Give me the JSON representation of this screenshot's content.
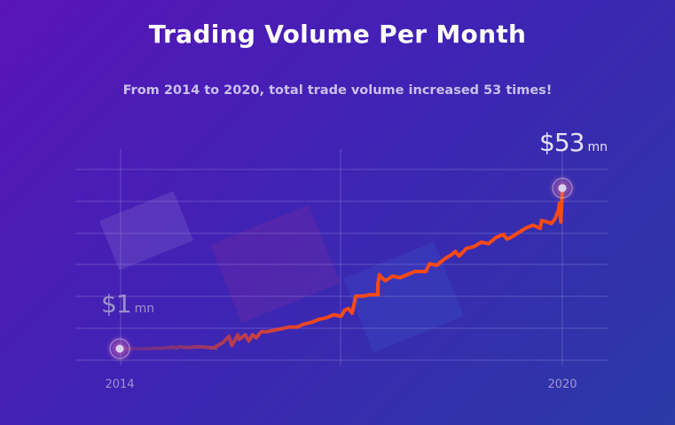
{
  "header": {
    "title": "Trading Volume Per Month",
    "subtitle": "From 2014 to 2020, total trade volume increased 53 times!"
  },
  "callouts": {
    "start": {
      "amount": "$1",
      "unit": "mn"
    },
    "end": {
      "amount": "$53",
      "unit": "mn"
    }
  },
  "colors": {
    "line": "#ff4a14",
    "grid": "#8f86d8",
    "marker": "#d9d2ee"
  },
  "chart_data": {
    "type": "line",
    "title": "Trading Volume Per Month",
    "subtitle": "From 2014 to 2020, total trade volume increased 53 times!",
    "xlabel": "",
    "ylabel": "",
    "x_tick_labels": [
      "2014",
      "2020"
    ],
    "xlim": [
      2014,
      2020
    ],
    "ylim": [
      1,
      55
    ],
    "grid": true,
    "legend": "none",
    "series": [
      {
        "x": [
          2014.0,
          2014.3,
          2014.6,
          2014.72,
          2014.76,
          2014.8,
          2014.9,
          2014.98,
          2015.0,
          2015.1,
          2015.2,
          2015.3,
          2015.3,
          2015.4,
          2015.48,
          2015.52,
          2015.6,
          2015.62,
          2015.7,
          2015.75,
          2015.8,
          2015.85,
          2015.88,
          2015.92,
          2016.0,
          2016.1,
          2016.2,
          2016.3,
          2016.4,
          2016.5,
          2016.6,
          2016.7,
          2016.8,
          2016.9,
          2017.0,
          2017.05,
          2017.1,
          2017.15,
          2017.2,
          2017.3,
          2017.4,
          2017.5,
          2017.5,
          2017.52,
          2017.55,
          2017.6,
          2017.7,
          2017.8,
          2017.9,
          2017.95,
          2018.0,
          2018.1,
          2018.15,
          2018.2,
          2018.3,
          2018.4,
          2018.5,
          2018.55,
          2018.6,
          2018.7,
          2018.8,
          2018.9,
          2019.0,
          2019.1,
          2019.2,
          2019.25,
          2019.3,
          2019.4,
          2019.5,
          2019.6,
          2019.7,
          2019.72,
          2019.8,
          2019.85,
          2019.9,
          2019.95,
          2019.96,
          2019.98,
          2020.0
        ],
        "y": [
          1.0,
          1.0,
          1.2,
          1.5,
          1.2,
          1.6,
          1.4,
          1.4,
          1.6,
          1.6,
          1.4,
          1.2,
          1.6,
          3.0,
          5.0,
          2.0,
          5.5,
          4.0,
          5.5,
          3.5,
          5.5,
          4.5,
          5.5,
          6.5,
          6.5,
          7.0,
          7.5,
          8.0,
          8.0,
          9.0,
          9.5,
          10.5,
          11.0,
          12.0,
          11.5,
          13.5,
          14.0,
          12.5,
          18.0,
          18.0,
          18.5,
          18.5,
          22.0,
          25.0,
          24.0,
          23.0,
          24.5,
          24.0,
          25.0,
          25.5,
          26.0,
          26.0,
          26.0,
          28.5,
          28.0,
          30.0,
          31.5,
          32.5,
          31.0,
          33.5,
          34.0,
          35.5,
          35.0,
          37.0,
          38.0,
          36.5,
          37.0,
          38.5,
          40.0,
          41.0,
          40.0,
          42.5,
          42.0,
          41.5,
          43.0,
          46.0,
          48.0,
          42.0,
          53.0
        ]
      }
    ]
  }
}
